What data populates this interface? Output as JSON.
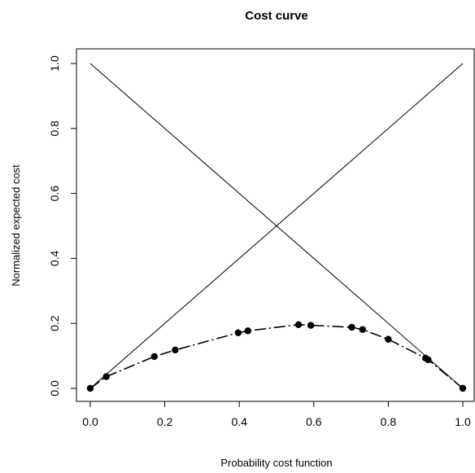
{
  "chart_data": {
    "type": "line",
    "title": "Cost curve",
    "xlabel": "Probability cost function",
    "ylabel": "Normalized expected cost",
    "xlim": [
      0.0,
      1.0
    ],
    "ylim": [
      0.0,
      1.0
    ],
    "xticks": [
      "0.0",
      "0.2",
      "0.4",
      "0.6",
      "0.8",
      "1.0"
    ],
    "yticks": [
      "0.0",
      "0.2",
      "0.4",
      "0.6",
      "0.8",
      "1.0"
    ],
    "grid": false,
    "reference_lines": [
      {
        "x": [
          0.0,
          1.0
        ],
        "y": [
          1.0,
          0.0
        ]
      },
      {
        "x": [
          0.0,
          1.0
        ],
        "y": [
          0.0,
          1.0
        ]
      }
    ],
    "series": [
      {
        "line_style": "dash-dot",
        "marker": "filled-circle",
        "x": [
          0.0,
          0.043,
          0.172,
          0.228,
          0.397,
          0.423,
          0.559,
          0.592,
          0.702,
          0.731,
          0.8,
          0.9,
          0.907,
          1.0
        ],
        "y": [
          0.0,
          0.036,
          0.098,
          0.118,
          0.171,
          0.177,
          0.196,
          0.194,
          0.188,
          0.181,
          0.151,
          0.093,
          0.088,
          0.0
        ]
      }
    ],
    "colors": {
      "line": "#000000",
      "marker": "#000000",
      "background": "#ffffff"
    }
  }
}
